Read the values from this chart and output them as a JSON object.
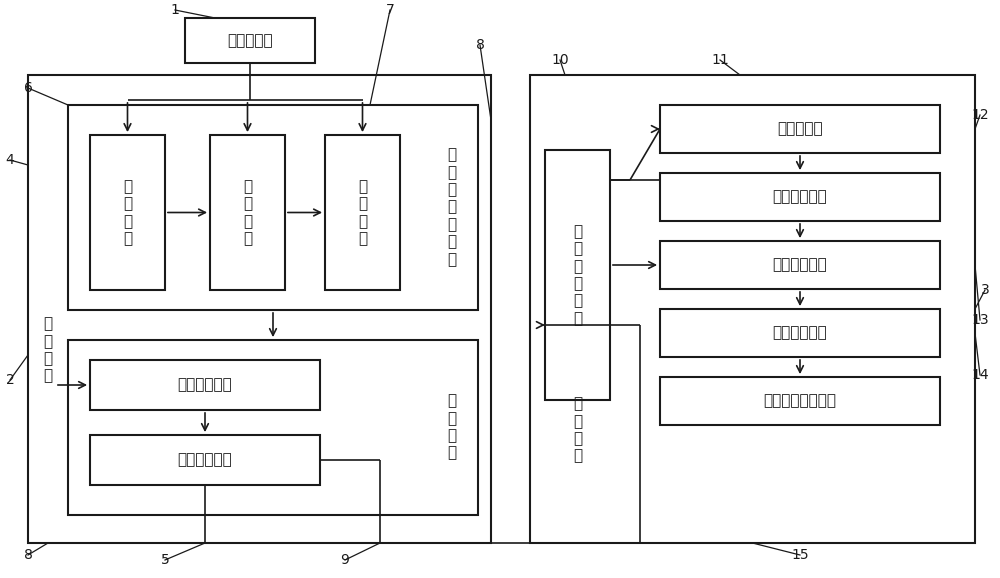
{
  "bg_color": "#ffffff",
  "line_color": "#1a1a1a",
  "fig_width": 10.0,
  "fig_height": 5.78,
  "box_predetect": "预检测模块",
  "box_lift": "升\n降\n模\n块",
  "box_push": "推\n送\n模\n块",
  "box_hint": "提\n示\n模\n块",
  "label_detect_unit": "检\n测\n床\n控\n制\n单\n元",
  "box_scan_collect": "扫描采集模块",
  "box_data_output": "数据输出模块",
  "label_scan_unit": "扫\n描\n单\n元",
  "label_diagnose_device": "诊\n断\n装\n置",
  "box_preprocess": "预处理模块",
  "box_target_gen": "目标生成模块",
  "box_net_calc": "网络计算模块",
  "box_classify": "分类诊断模块",
  "box_difficult_img": "疑难影像输出模块",
  "box_data_receive": "数\n据\n接\n收\n模\n块",
  "label_service_terminal": "服\n务\n终\n端"
}
